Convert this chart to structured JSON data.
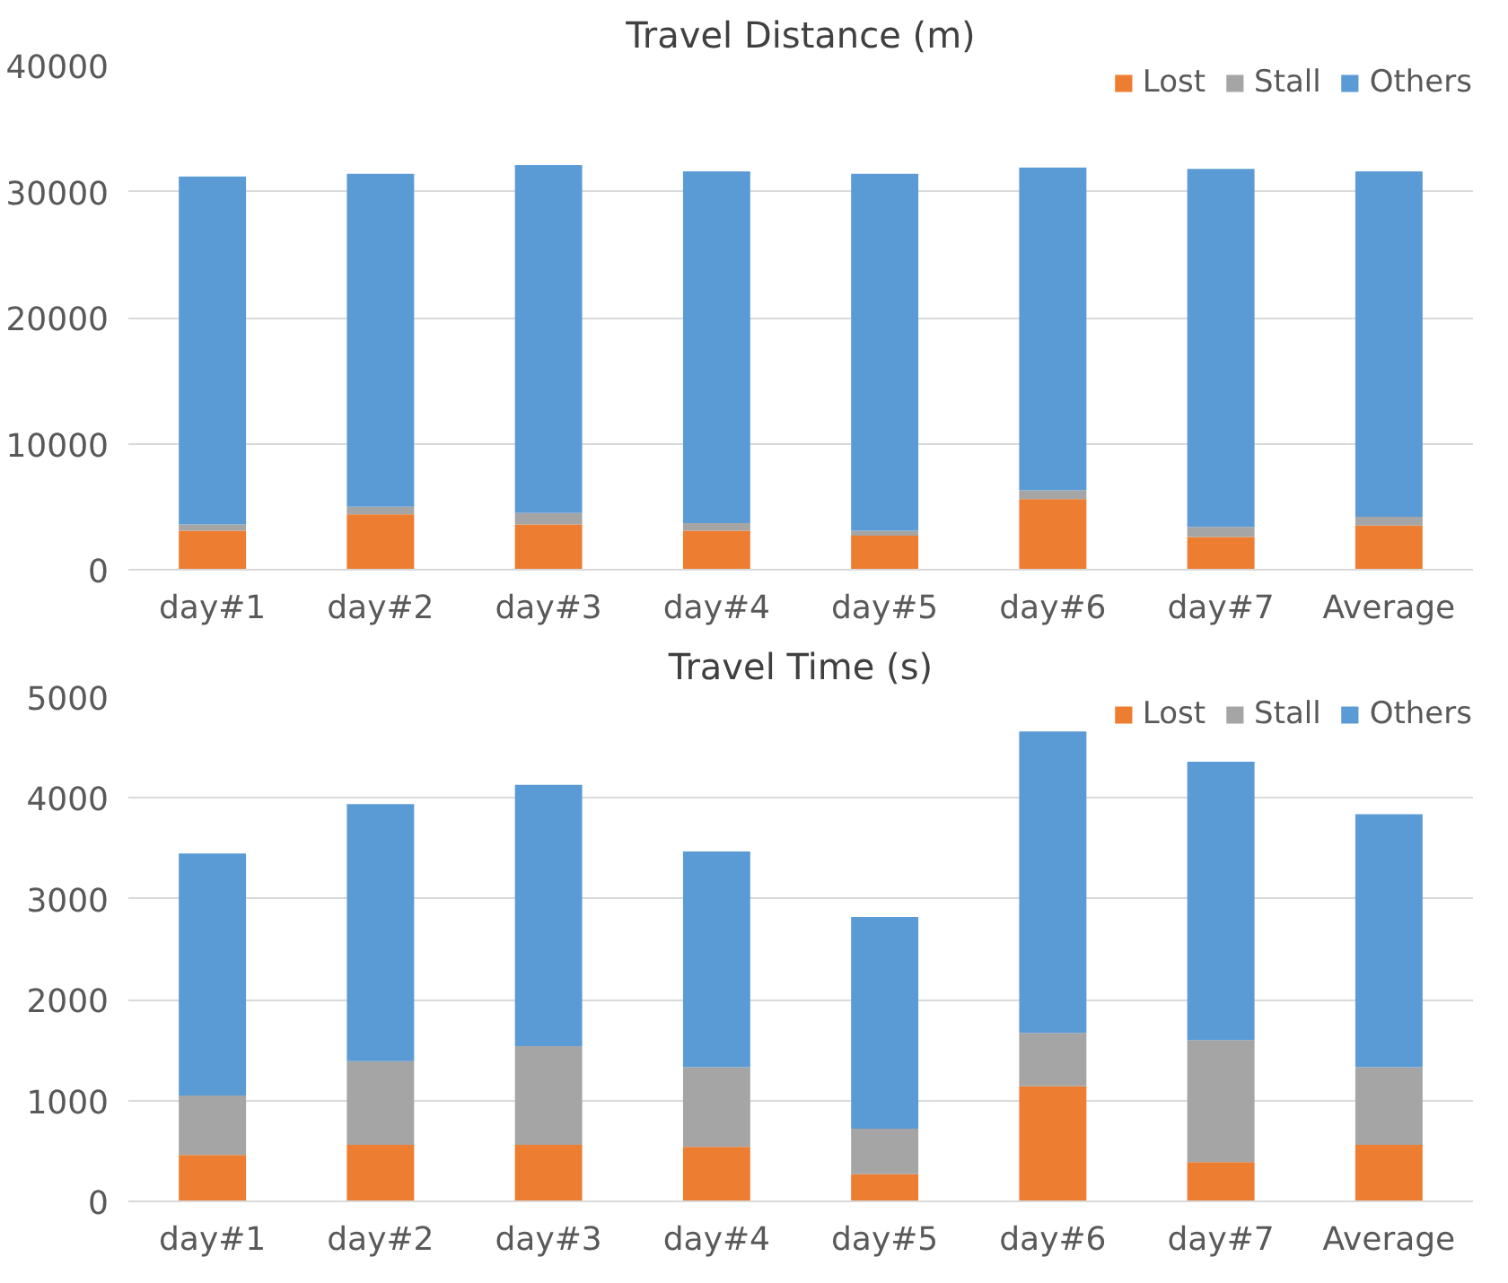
{
  "chart_data": [
    {
      "type": "bar",
      "title": "Travel Distance (m)",
      "stacked": true,
      "categories": [
        "day#1",
        "day#2",
        "day#3",
        "day#4",
        "day#5",
        "day#6",
        "day#7",
        "Average"
      ],
      "ylim": [
        0,
        40000
      ],
      "yticks": [
        0,
        10000,
        20000,
        30000,
        40000
      ],
      "grid": "y",
      "legend": "top right",
      "series": [
        {
          "name": "Lost",
          "color": "#ed7d31",
          "values": [
            3100,
            4400,
            3600,
            3100,
            2700,
            5600,
            2600,
            3500
          ]
        },
        {
          "name": "Stall",
          "color": "#a5a5a5",
          "values": [
            500,
            600,
            900,
            600,
            400,
            700,
            800,
            700
          ]
        },
        {
          "name": "Others",
          "color": "#5b9bd5",
          "values": [
            27600,
            26400,
            27600,
            27900,
            28300,
            25600,
            28400,
            27400
          ]
        }
      ]
    },
    {
      "type": "bar",
      "title": "Travel Time (s)",
      "stacked": true,
      "categories": [
        "day#1",
        "day#2",
        "day#3",
        "day#4",
        "day#5",
        "day#6",
        "day#7",
        "Average"
      ],
      "ylim": [
        0,
        5000
      ],
      "yticks": [
        0,
        1000,
        2000,
        3000,
        4000,
        5000
      ],
      "grid": "y",
      "legend": "top right",
      "series": [
        {
          "name": "Lost",
          "color": "#ed7d31",
          "values": [
            460,
            560,
            560,
            540,
            270,
            1140,
            390,
            560
          ]
        },
        {
          "name": "Stall",
          "color": "#a5a5a5",
          "values": [
            590,
            830,
            980,
            790,
            450,
            530,
            1210,
            770
          ]
        },
        {
          "name": "Others",
          "color": "#5b9bd5",
          "values": [
            2400,
            2550,
            2590,
            2140,
            2100,
            2990,
            2760,
            2510
          ]
        }
      ]
    }
  ]
}
